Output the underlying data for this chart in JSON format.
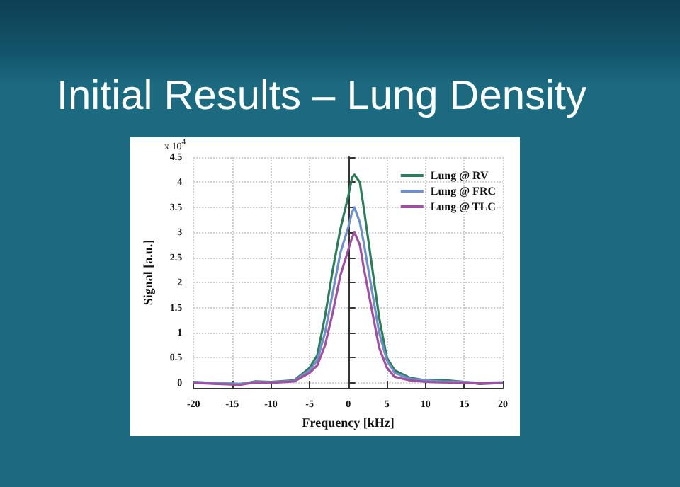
{
  "chart_data": {
    "type": "line",
    "title": "Initial Results – Lung Density",
    "xlabel": "Frequency [kHz]",
    "ylabel": "Signal [a.u.]",
    "annotations": [
      "x 10$^{4}$"
    ],
    "x": [
      -20,
      -17,
      -14,
      -12,
      -10,
      -7,
      -5,
      -4,
      -3,
      -2,
      -1,
      0,
      0.5,
      0.8,
      1.5,
      2,
      3,
      4,
      5,
      6,
      8,
      10,
      12,
      15,
      17,
      20
    ],
    "series": [
      {
        "name": "Lung @ RV",
        "color": "#2e7d5a",
        "values": [
          0.02,
          -0.01,
          -0.03,
          0.03,
          0.02,
          0.05,
          0.3,
          0.55,
          1.33,
          2.25,
          3.08,
          3.72,
          4.1,
          4.15,
          4.0,
          3.5,
          2.4,
          1.3,
          0.5,
          0.25,
          0.1,
          0.05,
          0.06,
          0.02,
          -0.02,
          0
        ]
      },
      {
        "name": "Lung @ FRC",
        "color": "#6f8fc8",
        "values": [
          0.01,
          0.0,
          -0.02,
          0.02,
          0.01,
          0.04,
          0.25,
          0.45,
          1.0,
          1.8,
          2.6,
          3.1,
          3.4,
          3.5,
          3.2,
          2.8,
          1.9,
          1.0,
          0.45,
          0.2,
          0.08,
          0.05,
          0.03,
          0.02,
          0.0,
          0.01
        ]
      },
      {
        "name": "Lung @ TLC",
        "color": "#a050a0",
        "values": [
          0.0,
          -0.02,
          -0.04,
          0.01,
          0.0,
          0.03,
          0.2,
          0.35,
          0.75,
          1.4,
          2.15,
          2.65,
          2.9,
          3.0,
          2.75,
          2.3,
          1.5,
          0.7,
          0.3,
          0.12,
          0.05,
          0.02,
          0.01,
          0.0,
          -0.01,
          0.0
        ]
      }
    ],
    "xlim": [
      -20,
      20
    ],
    "xticks": [
      -20,
      -15,
      -10,
      -5,
      0,
      5,
      10,
      15,
      20
    ],
    "ylim": [
      -0.1,
      4.5
    ],
    "yticks": [
      0,
      0.5,
      1,
      1.5,
      2,
      2.5,
      3,
      3.5,
      4,
      4.5
    ],
    "grid": true,
    "legend": "top right",
    "marker": "none",
    "line_style": "solid"
  }
}
